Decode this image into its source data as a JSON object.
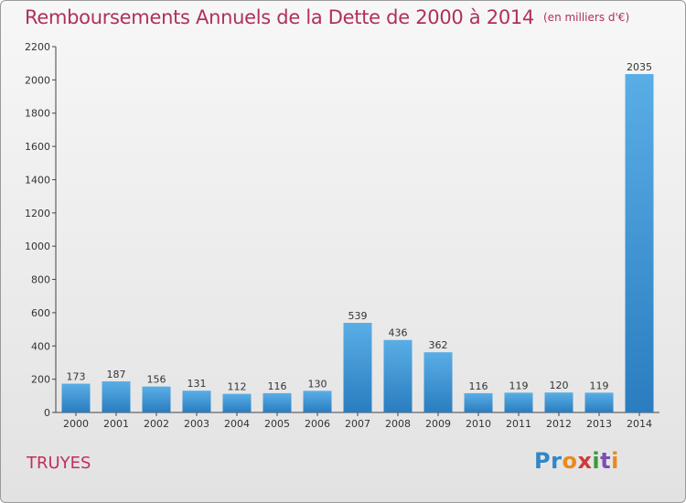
{
  "header": {
    "title": "Remboursements Annuels de la Dette de 2000 à 2014",
    "unit": "(en milliers d'€)"
  },
  "commune": "TRUYES",
  "logo": {
    "text": "Proxiti"
  },
  "colors": {
    "title": "#b0305a",
    "bar_light": "#5aaee6",
    "bar_dark": "#2a7dbf"
  },
  "chart_data": {
    "type": "bar",
    "title": "Remboursements Annuels de la Dette de 2000 à 2014",
    "subtitle": "(en milliers d'€)",
    "categories": [
      "2000",
      "2001",
      "2002",
      "2003",
      "2004",
      "2005",
      "2006",
      "2007",
      "2008",
      "2009",
      "2010",
      "2011",
      "2012",
      "2013",
      "2014"
    ],
    "values": [
      173,
      187,
      156,
      131,
      112,
      116,
      130,
      539,
      436,
      362,
      116,
      119,
      120,
      119,
      2035
    ],
    "ylim": [
      0,
      2200
    ],
    "yticks": [
      0,
      200,
      400,
      600,
      800,
      1000,
      1200,
      1400,
      1600,
      1800,
      2000,
      2200
    ],
    "xlabel": "",
    "ylabel": "",
    "grid": false,
    "data_labels": true
  }
}
